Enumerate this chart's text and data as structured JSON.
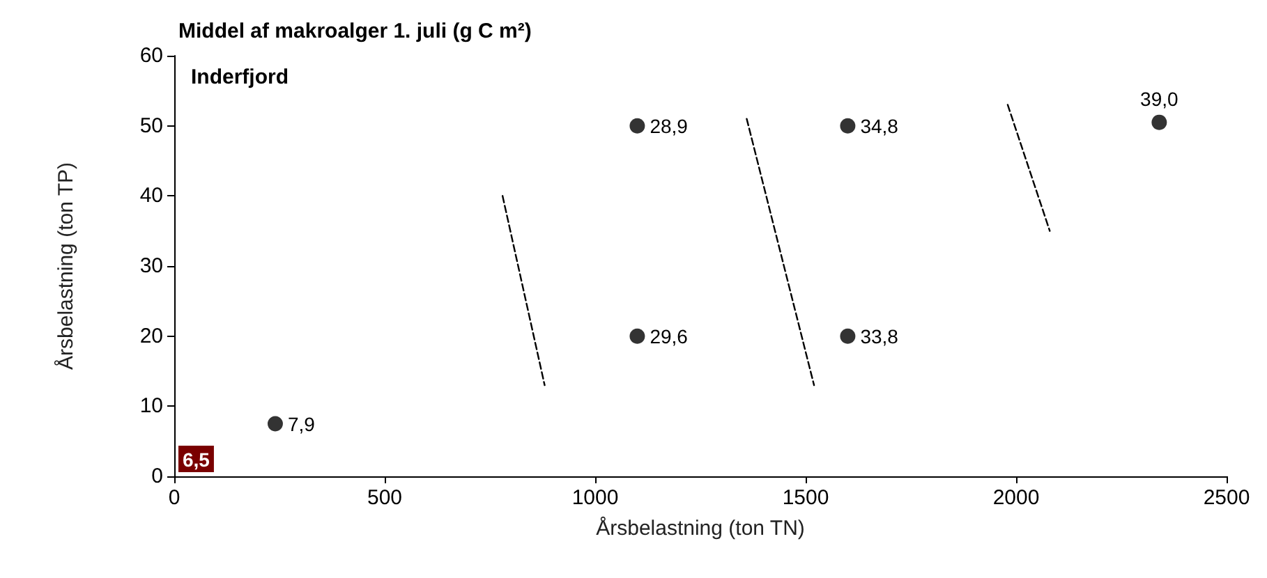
{
  "chart_data": {
    "type": "scatter",
    "title": "Middel af makroalger 1. juli (g C m²)",
    "xlabel": "Årsbelastning (ton TN)",
    "ylabel": "Årsbelastning (ton TP)",
    "annotations": [
      "Inderfjord",
      "6,5",
      {
        "text": "7,9",
        "x": 240,
        "y": 7.5
      },
      {
        "text": "28,9",
        "x": 1100,
        "y": 50
      },
      {
        "text": "29,6",
        "x": 1100,
        "y": 20
      },
      {
        "text": "34,8",
        "x": 1600,
        "y": 50
      },
      {
        "text": "33,8",
        "x": 1600,
        "y": 20
      },
      {
        "text": "39,0",
        "x": 2340,
        "y": 50.5
      }
    ],
    "xlim": [
      0,
      2500
    ],
    "xticks": [
      0,
      500,
      1000,
      1500,
      2000,
      2500
    ],
    "ylim": [
      0,
      60
    ],
    "yticks": [
      0,
      10,
      20,
      30,
      40,
      50,
      60
    ],
    "grid": false,
    "series": [
      {
        "color": "#000000",
        "marker": "circle",
        "x": [
          240,
          1100,
          1100,
          1600,
          1600,
          2340
        ],
        "values": [
          7.5,
          50,
          20,
          50,
          20,
          50.5
        ]
      },
      {
        "type": "line",
        "color": "#000000",
        "marker": "none",
        "line_style": "dashed",
        "x": [
          780,
          880
        ],
        "values": [
          40,
          13
        ]
      },
      {
        "type": "line",
        "color": "#000000",
        "marker": "none",
        "line_style": "dashed",
        "x": [
          1360,
          1520
        ],
        "values": [
          51,
          13
        ]
      },
      {
        "type": "line",
        "color": "#000000",
        "marker": "none",
        "line_style": "dashed",
        "x": [
          1980,
          2080
        ],
        "values": [
          53,
          35
        ]
      }
    ]
  }
}
